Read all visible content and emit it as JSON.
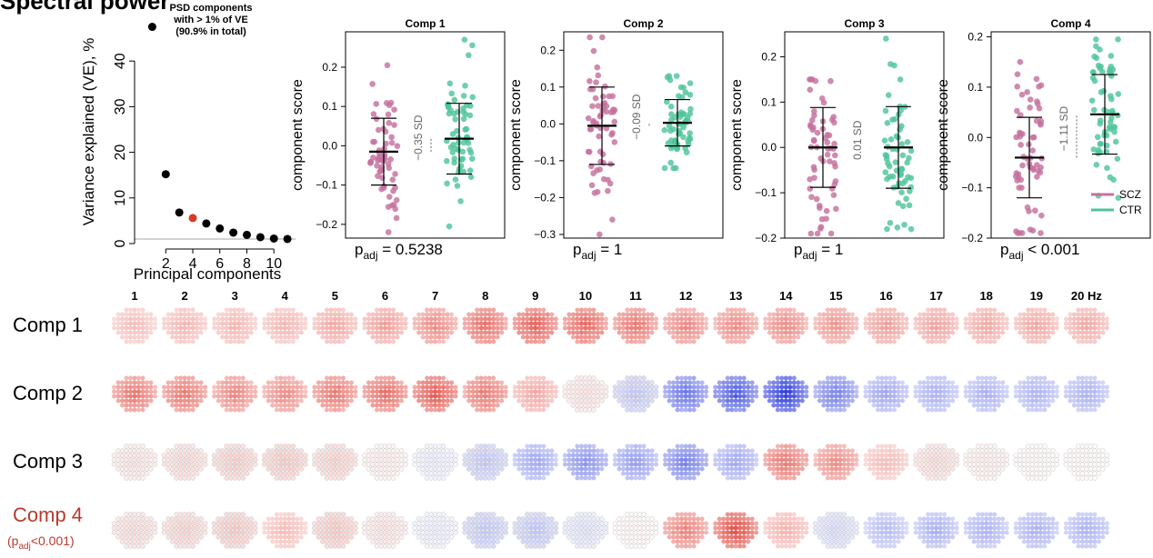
{
  "figure_title": "Spectral power",
  "colors": {
    "scz": "#c4719e",
    "ctr": "#4fc49a",
    "highlight_pc": "#d63a2a",
    "pos_topo": "#e03c33",
    "neg_topo": "#2d3cdc",
    "row_highlight": "#b83a2c"
  },
  "chart_data": [
    {
      "type": "scatter",
      "id": "scree",
      "title": "PSD components\nwith > 1% of VE\n(90.9% in total)",
      "xlabel": "Principal components",
      "ylabel": "Variance explained (VE), %",
      "xlim": [
        0.5,
        11.6
      ],
      "ylim": [
        0,
        49
      ],
      "xticks": [
        2,
        4,
        6,
        8,
        10
      ],
      "yticks": [
        0,
        10,
        20,
        30,
        40
      ],
      "reference_line_y": 1,
      "highlighted_x": 4,
      "x": [
        1,
        2,
        3,
        4,
        5,
        6,
        7,
        8,
        9,
        10,
        11
      ],
      "y": [
        47.5,
        15.2,
        6.8,
        5.6,
        4.4,
        3.3,
        2.4,
        1.9,
        1.4,
        1.1,
        1.0
      ]
    },
    {
      "type": "scatter",
      "id": "comp1",
      "title": "Comp 1",
      "ylabel": "component score",
      "ylim": [
        -0.235,
        0.29
      ],
      "yticks": [
        -0.2,
        -0.1,
        0.0,
        0.1,
        0.2
      ],
      "ytick_labels": [
        "−0.2",
        "−0.1",
        "0.0",
        "0.1",
        "0.2"
      ],
      "groups": [
        {
          "name": "SCZ",
          "mean": -0.015,
          "sd": 0.085,
          "min": -0.22,
          "max": 0.205
        },
        {
          "name": "CTR",
          "mean": 0.018,
          "sd": 0.09,
          "min": -0.205,
          "max": 0.27
        }
      ],
      "effect_label": "−0.35 SD",
      "p_label": "= 0.5238"
    },
    {
      "type": "scatter",
      "id": "comp2",
      "title": "Comp 2",
      "ylabel": "component score",
      "ylim": [
        -0.31,
        0.25
      ],
      "yticks": [
        -0.3,
        -0.2,
        -0.1,
        0.0,
        0.1,
        0.2
      ],
      "ytick_labels": [
        "−0.3",
        "−0.2",
        "−0.1",
        "0.0",
        "0.1",
        "0.2"
      ],
      "groups": [
        {
          "name": "SCZ",
          "mean": -0.005,
          "sd": 0.105,
          "min": -0.3,
          "max": 0.235
        },
        {
          "name": "CTR",
          "mean": 0.003,
          "sd": 0.063,
          "min": -0.12,
          "max": 0.13
        }
      ],
      "effect_label": "−0.09 SD",
      "p_label": "= 1"
    },
    {
      "type": "scatter",
      "id": "comp3",
      "title": "Comp 3",
      "ylabel": "component score",
      "ylim": [
        -0.2,
        0.255
      ],
      "yticks": [
        -0.2,
        -0.1,
        0.0,
        0.1,
        0.2
      ],
      "ytick_labels": [
        "−0.2",
        "−0.1",
        "0.0",
        "0.1",
        "0.2"
      ],
      "groups": [
        {
          "name": "SCZ",
          "mean": 0.0,
          "sd": 0.088,
          "min": -0.19,
          "max": 0.15
        },
        {
          "name": "CTR",
          "mean": 0.0,
          "sd": 0.09,
          "min": -0.18,
          "max": 0.24
        }
      ],
      "effect_label": "0.01 SD",
      "p_label": "= 1"
    },
    {
      "type": "scatter",
      "id": "comp4",
      "title": "Comp 4",
      "ylabel": "component score",
      "ylim": [
        -0.2,
        0.21
      ],
      "yticks": [
        -0.2,
        -0.1,
        0.0,
        0.1,
        0.2
      ],
      "ytick_labels": [
        "−0.2",
        "−0.1",
        "0.0",
        "0.1",
        "0.2"
      ],
      "groups": [
        {
          "name": "SCZ",
          "mean": -0.04,
          "sd": 0.08,
          "min": -0.19,
          "max": 0.15
        },
        {
          "name": "CTR",
          "mean": 0.046,
          "sd": 0.079,
          "min": -0.12,
          "max": 0.195
        }
      ],
      "effect_label": "−1.11 SD",
      "p_label": "< 0.001",
      "legend": [
        {
          "label": "SCZ",
          "color": "#c4719e"
        },
        {
          "label": "CTR",
          "color": "#4fc49a"
        }
      ]
    },
    {
      "type": "heatmap",
      "id": "topomaps",
      "columns": [
        "1",
        "2",
        "3",
        "4",
        "5",
        "6",
        "7",
        "8",
        "9",
        "10",
        "11",
        "12",
        "13",
        "14",
        "15",
        "16",
        "17",
        "18",
        "19",
        "20 Hz"
      ],
      "rows": [
        {
          "label": "Comp 1",
          "sublabel": "",
          "highlight": false,
          "values": [
            0.35,
            0.38,
            0.38,
            0.38,
            0.45,
            0.5,
            0.6,
            0.75,
            0.82,
            0.78,
            0.7,
            0.62,
            0.6,
            0.6,
            0.55,
            0.5,
            0.48,
            0.45,
            0.45,
            0.45
          ]
        },
        {
          "label": "Comp 2",
          "sublabel": "",
          "highlight": false,
          "values": [
            0.7,
            0.7,
            0.62,
            0.6,
            0.7,
            0.75,
            0.85,
            0.7,
            0.45,
            0.15,
            -0.3,
            -0.7,
            -0.85,
            -1.0,
            -0.65,
            -0.45,
            -0.4,
            -0.4,
            -0.4,
            -0.4
          ]
        },
        {
          "label": "Comp 3",
          "sublabel": "",
          "highlight": false,
          "values": [
            0.15,
            0.22,
            0.28,
            0.3,
            0.25,
            0.1,
            -0.1,
            -0.3,
            -0.45,
            -0.55,
            -0.5,
            -0.65,
            -0.45,
            0.7,
            0.6,
            0.35,
            0.2,
            0.1,
            0.05,
            0.05
          ]
        },
        {
          "label": "Comp 4",
          "sublabel": "(p<sub>adj</sub><0.001)",
          "highlight": true,
          "values": [
            0.2,
            0.25,
            0.3,
            0.35,
            0.3,
            0.15,
            -0.1,
            -0.3,
            -0.3,
            -0.15,
            0.05,
            0.65,
            0.9,
            0.4,
            -0.2,
            -0.35,
            -0.4,
            -0.4,
            -0.4,
            -0.4
          ]
        }
      ]
    }
  ]
}
